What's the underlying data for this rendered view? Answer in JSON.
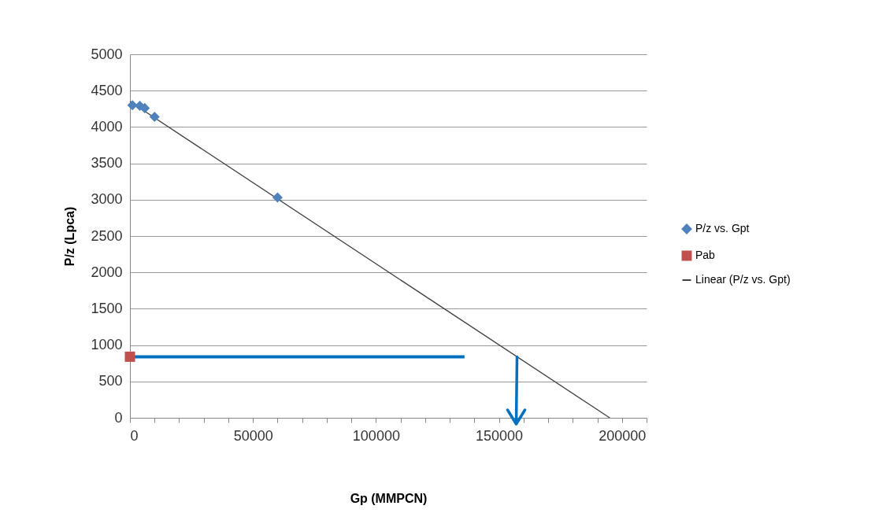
{
  "chart_data": {
    "type": "scatter",
    "xlabel": "Gp (MMPCN)",
    "ylabel": "P/z (Lpca)",
    "xlim": [
      0,
      210000
    ],
    "ylim": [
      0,
      5000
    ],
    "xticks": [
      0,
      {
        "value": 10000,
        "label": null
      },
      {
        "value": 20000,
        "label": null
      },
      {
        "value": 30000,
        "label": null
      },
      {
        "value": 40000,
        "label": null
      },
      50000,
      {
        "value": 60000,
        "label": null
      },
      {
        "value": 70000,
        "label": null
      },
      {
        "value": 80000,
        "label": null
      },
      {
        "value": 90000,
        "label": null
      },
      100000,
      {
        "value": 110000,
        "label": null
      },
      {
        "value": 120000,
        "label": null
      },
      {
        "value": 130000,
        "label": null
      },
      {
        "value": 140000,
        "label": null
      },
      150000,
      {
        "value": 160000,
        "label": null
      },
      {
        "value": 170000,
        "label": null
      },
      {
        "value": 180000,
        "label": null
      },
      {
        "value": 190000,
        "label": null
      },
      200000,
      {
        "value": 210000,
        "label": null
      }
    ],
    "yticks": [
      0,
      500,
      1000,
      1500,
      2000,
      2500,
      3000,
      3500,
      4000,
      4500,
      5000
    ],
    "grid": "y",
    "legend": "right",
    "series": [
      {
        "name": "P/z vs. Gpt",
        "type": "scatter",
        "marker": "diamond",
        "color": "#4f81bd",
        "x": [
          1000,
          4000,
          6000,
          10000,
          60000
        ],
        "values": [
          4300,
          4290,
          4260,
          4140,
          3030
        ]
      },
      {
        "name": "Pab",
        "type": "scatter",
        "marker": "square",
        "color": "#c0504d",
        "x": [
          0
        ],
        "values": [
          840
        ]
      },
      {
        "name": "Linear (P/z vs. Gpt)",
        "type": "line",
        "color": "#404040",
        "x": [
          0,
          195000
        ],
        "values": [
          4350,
          0
        ]
      },
      {
        "type": "line",
        "color": "#0070c0",
        "x": [
          0,
          136000
        ],
        "values": [
          840,
          840
        ]
      }
    ]
  }
}
